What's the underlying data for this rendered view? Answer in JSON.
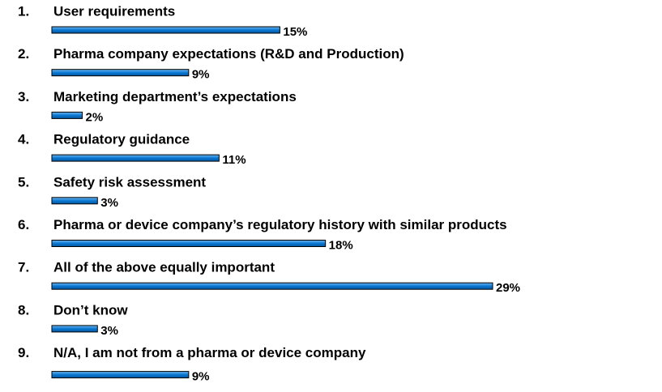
{
  "chart_data": {
    "type": "hbar",
    "numbers": [
      "1.",
      "2.",
      "3.",
      "4.",
      "5.",
      "6.",
      "7.",
      "8.",
      "9."
    ],
    "categories": [
      "User requirements",
      "Pharma company expectations (R&D and Production)",
      "Marketing department’s expectations",
      "Regulatory guidance",
      "Safety risk assessment",
      "Pharma or device company’s regulatory history with similar products",
      "All of the above equally important",
      "Don’t know",
      "N/A, I am not from a pharma or device company"
    ],
    "values": [
      15,
      9,
      2,
      11,
      3,
      18,
      29,
      3,
      9
    ],
    "value_labels": [
      "15%",
      "9%",
      "2%",
      "11%",
      "3%",
      "18%",
      "29%",
      "3%",
      "9%"
    ],
    "color": "#0a78d2"
  }
}
